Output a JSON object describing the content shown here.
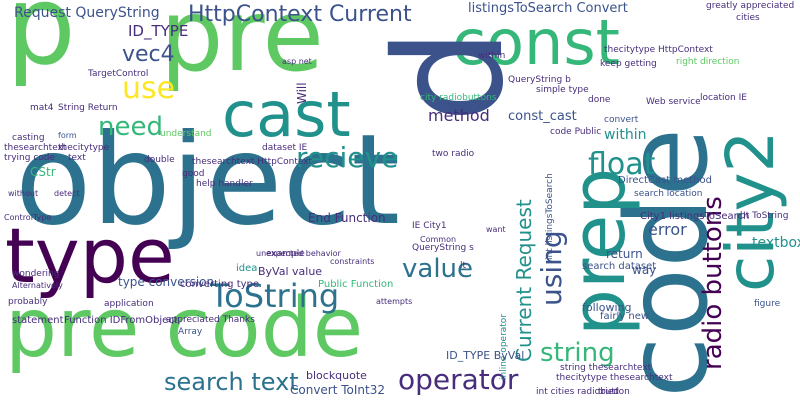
{
  "colors": {
    "background": "#ffffff",
    "palette": [
      "#440154",
      "#3b528b",
      "#21918c",
      "#5ec962",
      "#fde725",
      "#2c728e",
      "#35b779",
      "#472d7b",
      "#90d743"
    ]
  },
  "words": [
    "p",
    "pre",
    "object",
    "code",
    "const",
    "cast",
    "pre code",
    "type",
    "city2",
    "prep",
    "HttpContext Current",
    "Request QueryString",
    "ID_TYPE",
    "vec4",
    "use",
    "need",
    "recieve",
    "float",
    "value",
    "ToString",
    "search text",
    "operator",
    "string",
    "radio buttons",
    "Current Request",
    "using",
    "listingsToSearch Convert",
    "const_cast",
    "method",
    "within",
    "convert",
    "error",
    "textbox",
    "End Function",
    "DirectCast method",
    "type conversion",
    "ByVal value",
    "Public Function",
    "converting type",
    "idea",
    "Convert ToInt32",
    "blockquote",
    "ID_TYPE ByVal",
    "int listingsToSearch",
    "inline operator",
    "search dataset",
    "following",
    "fairly new",
    "return",
    "way",
    "City1 listingsToSearch",
    "thecitytype HttpContext",
    "TargetControl",
    "String Return",
    "mat4",
    "casting",
    "thesearchtext",
    "thecitytype",
    "trying code",
    "CStr",
    "text",
    "thesearchtext HttpContext",
    "form",
    "understand",
    "double",
    "statement",
    "Function IDFromObject",
    "appreciated Thanks",
    "Array",
    "application",
    "probably",
    "example",
    "search location",
    "bt ToString",
    "figure",
    "int cities radiobutton",
    "thecitytype thesearchtext",
    "string thesearchtext",
    "tried",
    "asp net",
    "two radio",
    "IE City1",
    "QueryString s",
    "location IE",
    "greatly appreciated",
    "cities",
    "right direction",
    "keep getting",
    "simple type",
    "city radiobuttons",
    "QueryString b",
    "Will",
    "Web service",
    "done",
    "code Public",
    "within",
    "lt",
    "good",
    "help handler",
    "dataset IE",
    "wondering",
    "Alternatively",
    "without",
    "ControlType",
    "detect",
    "unexpected behavior",
    "constraints",
    "Common",
    "want",
    "attempts"
  ]
}
